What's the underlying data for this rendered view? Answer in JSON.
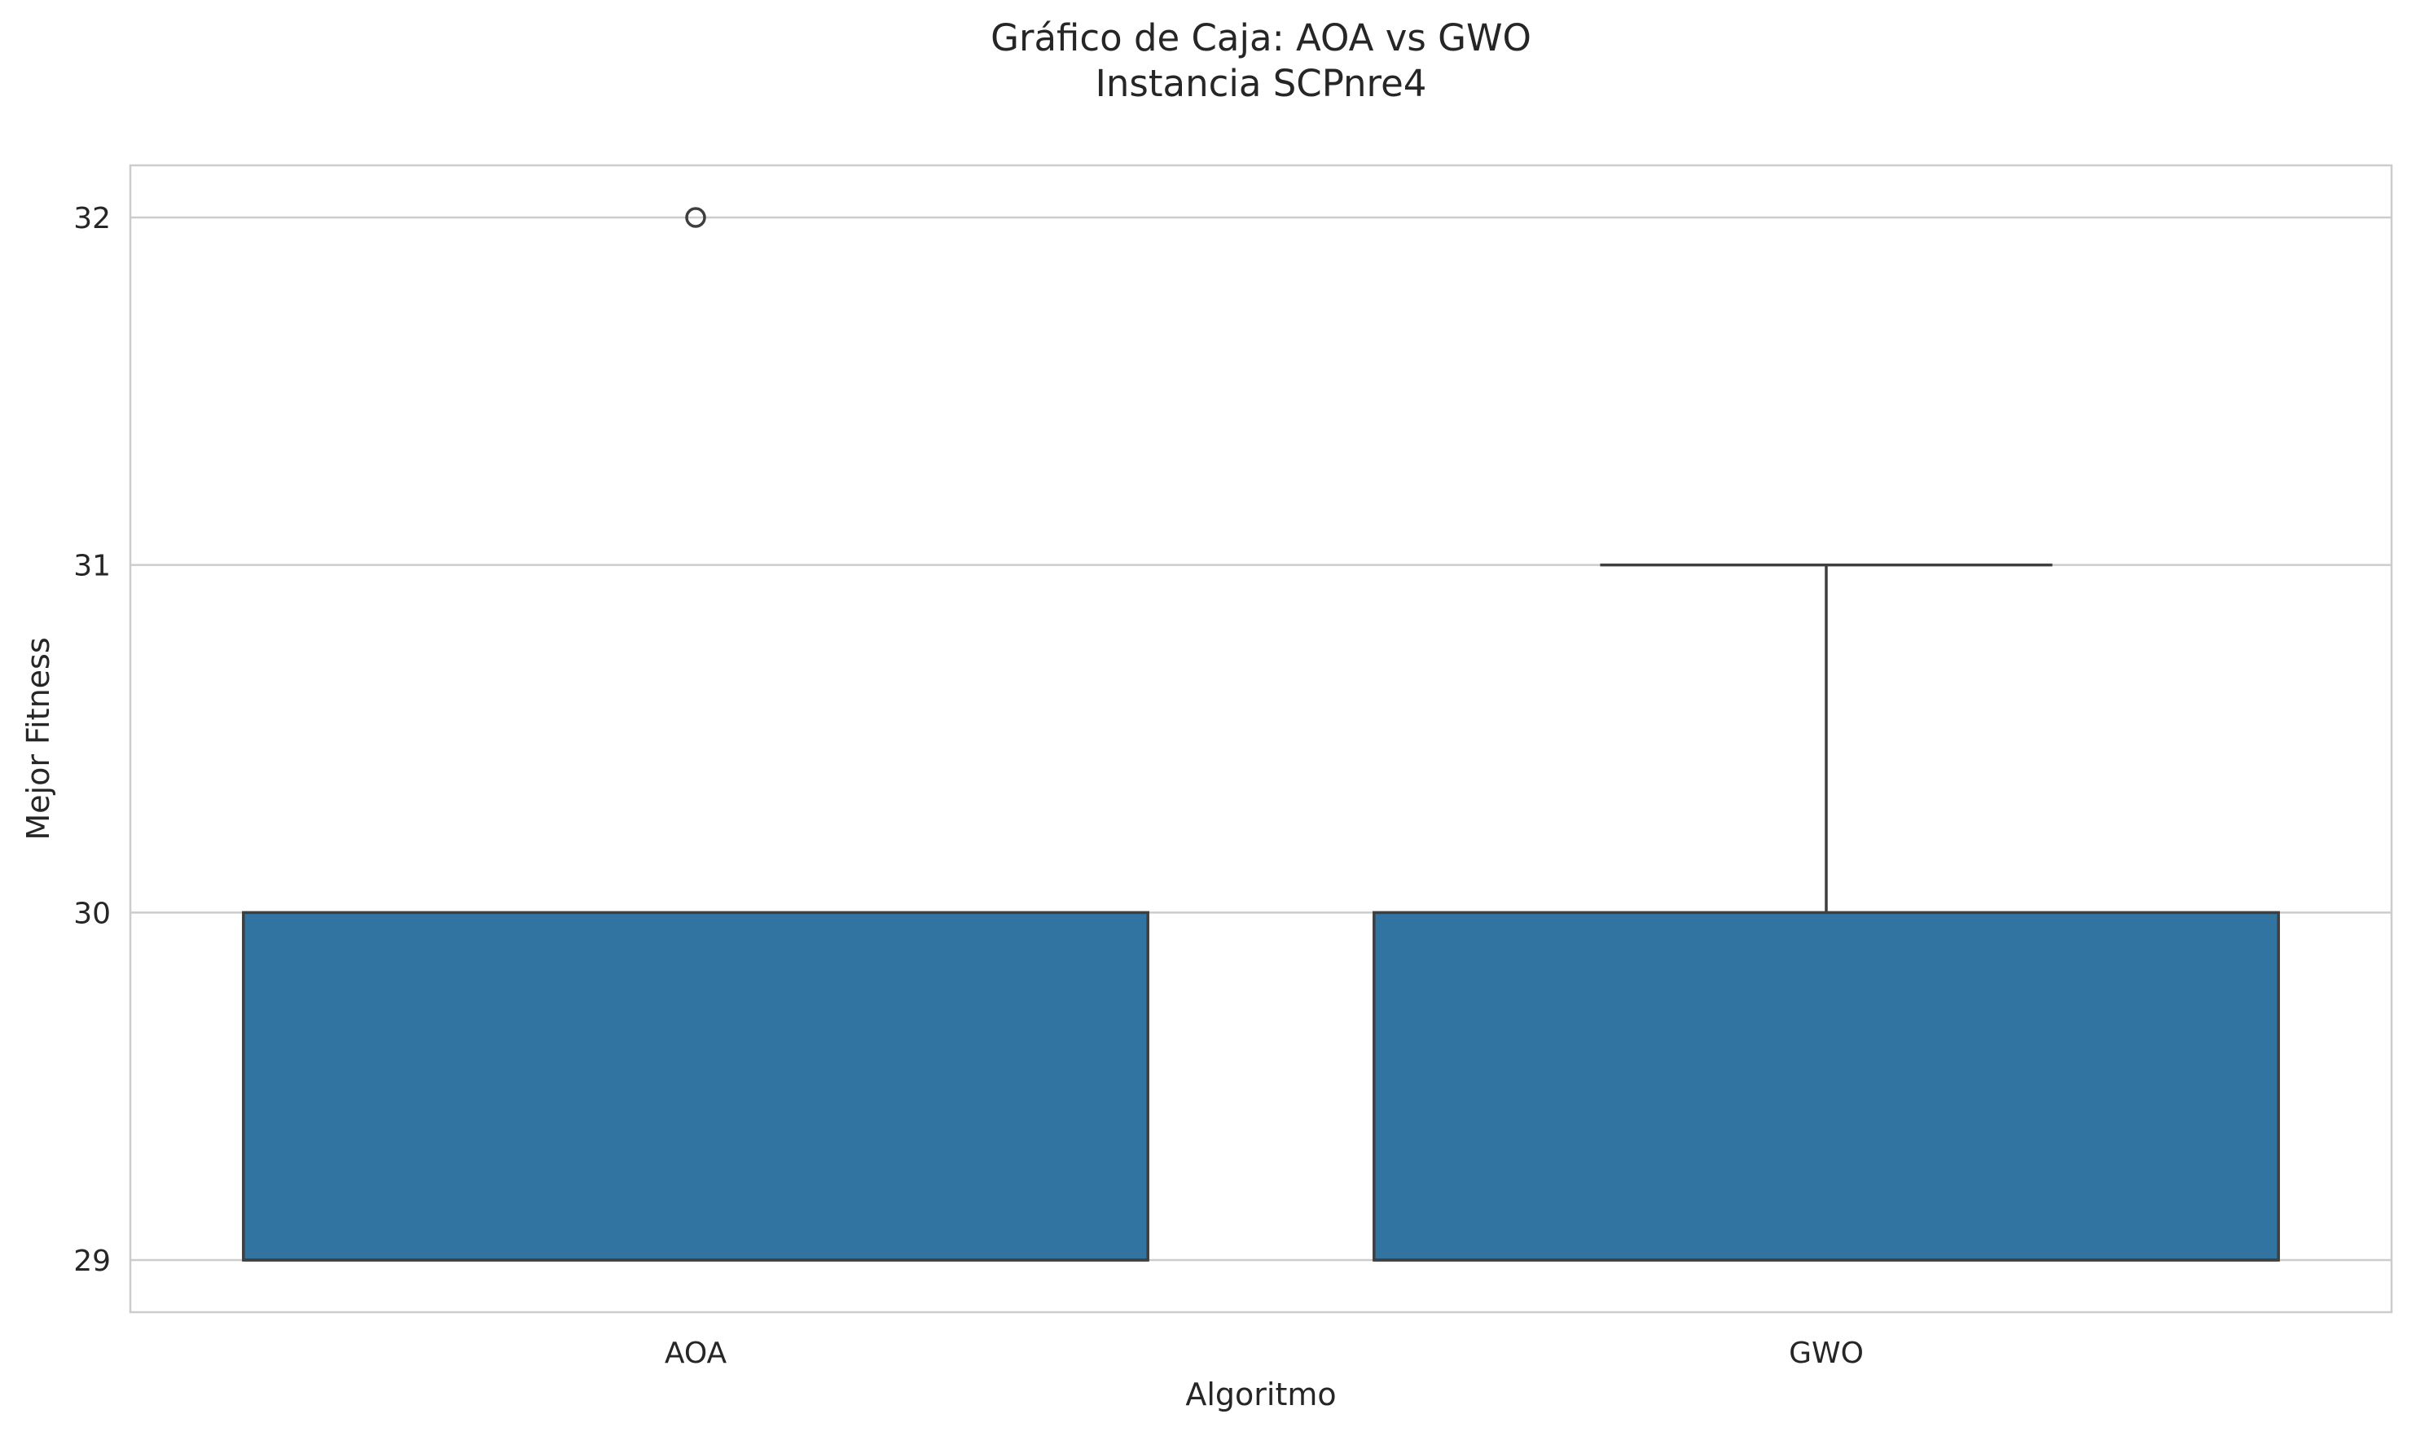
{
  "chart_data": {
    "type": "box",
    "title": "Gráfico de Caja: AOA vs GWO",
    "subtitle": "Instancia SCPnre4",
    "xlabel": "Algoritmo",
    "ylabel": "Mejor Fitness",
    "ylim": [
      28.85,
      32.15
    ],
    "yticks": [
      29,
      30,
      31,
      32
    ],
    "grid": "horizontal",
    "box_color": "#3274a1",
    "edge_color": "#3f3f3f",
    "grid_color": "#cccccc",
    "categories": [
      "AOA",
      "GWO"
    ],
    "boxes": [
      {
        "label": "AOA",
        "whisker_low": 29,
        "q1": 29,
        "median": 29,
        "q3": 30,
        "whisker_high": 30,
        "outliers": [
          32
        ]
      },
      {
        "label": "GWO",
        "whisker_low": 29,
        "q1": 29,
        "median": 29,
        "q3": 30,
        "whisker_high": 31,
        "outliers": []
      }
    ]
  }
}
